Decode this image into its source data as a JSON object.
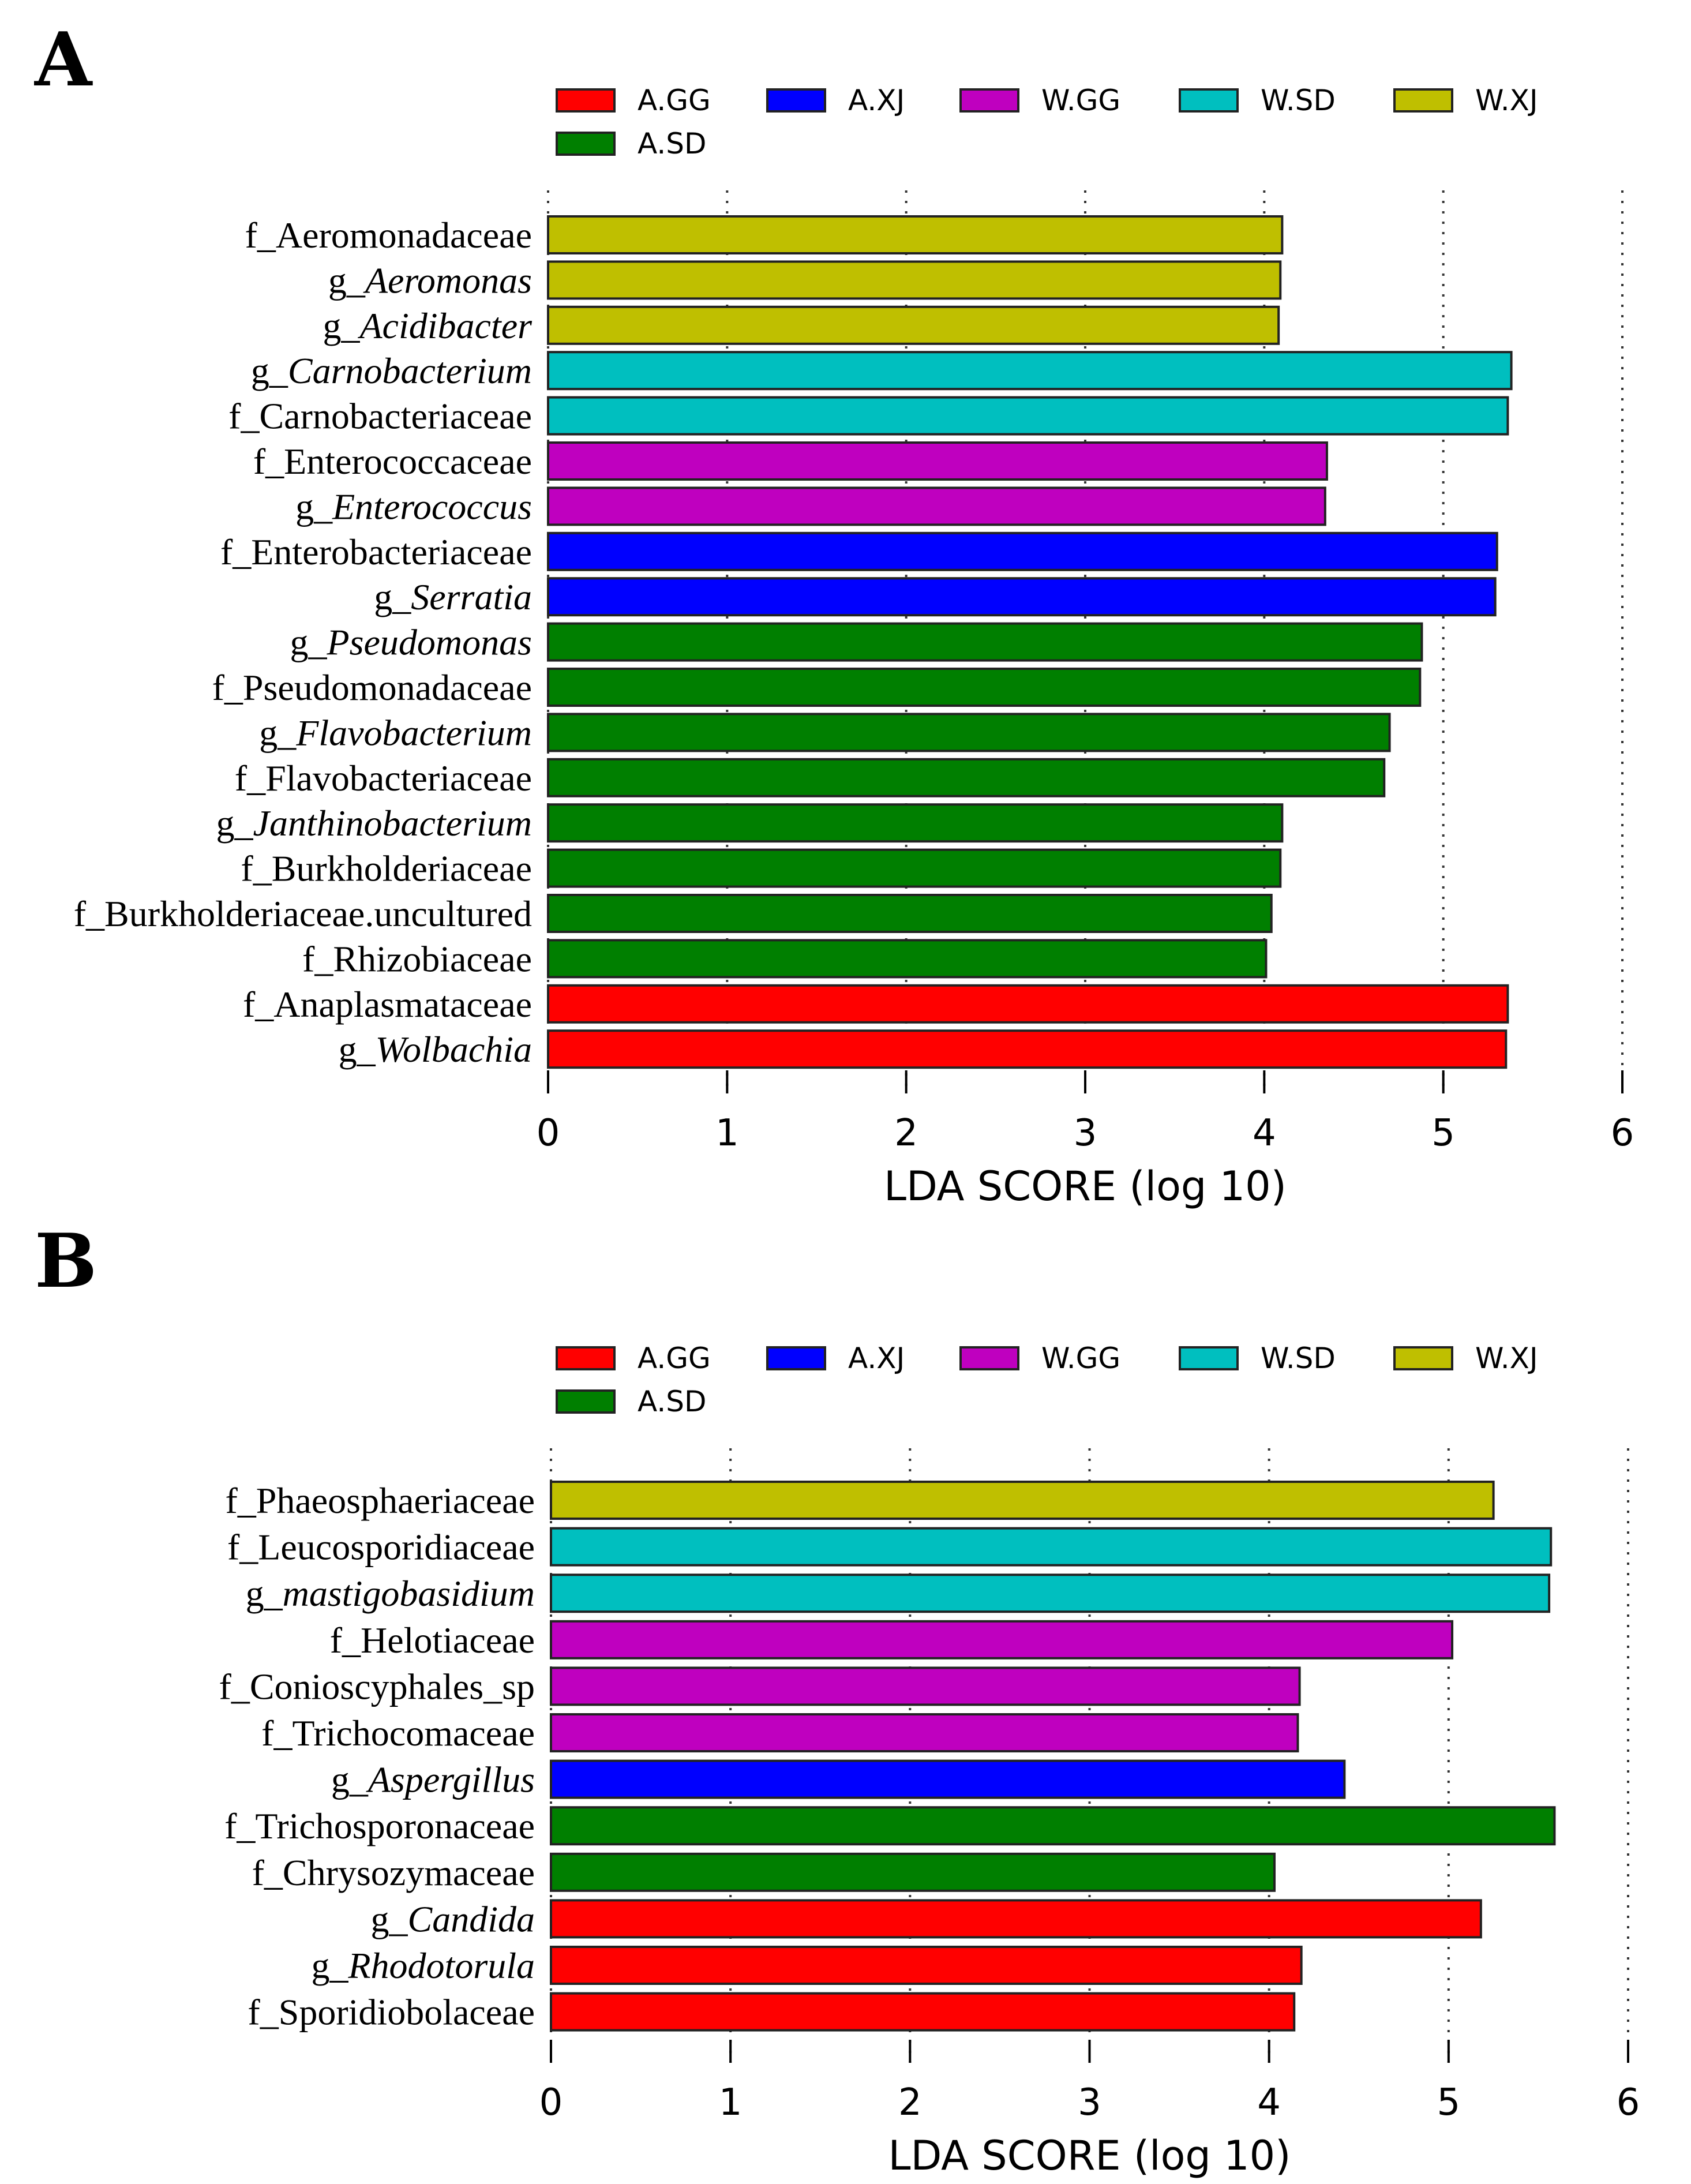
{
  "chart_data": [
    {
      "type": "bar",
      "orientation": "horizontal",
      "panel": "A",
      "xlabel": "LDA SCORE (log 10)",
      "xlim": [
        0,
        6
      ],
      "xticks": [
        "0",
        "1",
        "2",
        "3",
        "4",
        "5",
        "6"
      ],
      "grid": true,
      "legend_position": "top",
      "legend": [
        {
          "name": "A.GG",
          "color": "#ff0000"
        },
        {
          "name": "A.XJ",
          "color": "#0000ff"
        },
        {
          "name": "W.GG",
          "color": "#bf00bf"
        },
        {
          "name": "W.SD",
          "color": "#00bfbf"
        },
        {
          "name": "W.XJ",
          "color": "#bfbf00"
        },
        {
          "name": "A.SD",
          "color": "#007f00"
        }
      ],
      "bars": [
        {
          "prefix": "f_",
          "name": "Aeromonadaceae",
          "italic": false,
          "value": 4.1,
          "group": "W.XJ"
        },
        {
          "prefix": "g_",
          "name": "Aeromonas",
          "italic": true,
          "value": 4.09,
          "group": "W.XJ"
        },
        {
          "prefix": "g_",
          "name": "Acidibacter",
          "italic": true,
          "value": 4.08,
          "group": "W.XJ"
        },
        {
          "prefix": "g_",
          "name": "Carnobacterium",
          "italic": true,
          "value": 5.38,
          "group": "W.SD"
        },
        {
          "prefix": "f_",
          "name": "Carnobacteriaceae",
          "italic": false,
          "value": 5.36,
          "group": "W.SD"
        },
        {
          "prefix": "f_",
          "name": "Enterococcaceae",
          "italic": false,
          "value": 4.35,
          "group": "W.GG"
        },
        {
          "prefix": "g_",
          "name": "Enterococcus",
          "italic": true,
          "value": 4.34,
          "group": "W.GG"
        },
        {
          "prefix": "f_",
          "name": "Enterobacteriaceae",
          "italic": false,
          "value": 5.3,
          "group": "A.XJ"
        },
        {
          "prefix": "g_",
          "name": "Serratia",
          "italic": true,
          "value": 5.29,
          "group": "A.XJ"
        },
        {
          "prefix": "g_",
          "name": "Pseudomonas",
          "italic": true,
          "value": 4.88,
          "group": "A.SD"
        },
        {
          "prefix": "f_",
          "name": "Pseudomonadaceae",
          "italic": false,
          "value": 4.87,
          "group": "A.SD"
        },
        {
          "prefix": "g_",
          "name": "Flavobacterium",
          "italic": true,
          "value": 4.7,
          "group": "A.SD"
        },
        {
          "prefix": "f_",
          "name": "Flavobacteriaceae",
          "italic": false,
          "value": 4.67,
          "group": "A.SD"
        },
        {
          "prefix": "g_",
          "name": "Janthinobacterium",
          "italic": true,
          "value": 4.1,
          "group": "A.SD"
        },
        {
          "prefix": "f_",
          "name": "Burkholderiaceae",
          "italic": false,
          "value": 4.09,
          "group": "A.SD"
        },
        {
          "prefix": "f_",
          "name": "Burkholderiaceae.uncultured",
          "italic": false,
          "value": 4.04,
          "group": "A.SD"
        },
        {
          "prefix": "f_",
          "name": "Rhizobiaceae",
          "italic": false,
          "value": 4.01,
          "group": "A.SD"
        },
        {
          "prefix": "f_",
          "name": "Anaplasmataceae",
          "italic": false,
          "value": 5.36,
          "group": "A.GG"
        },
        {
          "prefix": "g_",
          "name": "Wolbachia",
          "italic": true,
          "value": 5.35,
          "group": "A.GG"
        }
      ]
    },
    {
      "type": "bar",
      "orientation": "horizontal",
      "panel": "B",
      "xlabel": "LDA SCORE (log 10)",
      "xlim": [
        0,
        6
      ],
      "xticks": [
        "0",
        "1",
        "2",
        "3",
        "4",
        "5",
        "6"
      ],
      "grid": true,
      "legend_position": "top",
      "legend": [
        {
          "name": "A.GG",
          "color": "#ff0000"
        },
        {
          "name": "A.XJ",
          "color": "#0000ff"
        },
        {
          "name": "W.GG",
          "color": "#bf00bf"
        },
        {
          "name": "W.SD",
          "color": "#00bfbf"
        },
        {
          "name": "W.XJ",
          "color": "#bfbf00"
        },
        {
          "name": "A.SD",
          "color": "#007f00"
        }
      ],
      "bars": [
        {
          "prefix": "f_",
          "name": "Phaeosphaeriaceae",
          "italic": false,
          "value": 5.25,
          "group": "W.XJ"
        },
        {
          "prefix": "f_",
          "name": "Leucosporidiaceae",
          "italic": false,
          "value": 5.57,
          "group": "W.SD"
        },
        {
          "prefix": "g_",
          "name": "mastigobasidium",
          "italic": true,
          "value": 5.56,
          "group": "W.SD"
        },
        {
          "prefix": "f_",
          "name": "Helotiaceae",
          "italic": false,
          "value": 5.02,
          "group": "W.GG"
        },
        {
          "prefix": "f_",
          "name": "Conioscyphales_sp",
          "italic": false,
          "value": 4.17,
          "group": "W.GG"
        },
        {
          "prefix": "f_",
          "name": "Trichocomaceae",
          "italic": false,
          "value": 4.16,
          "group": "W.GG"
        },
        {
          "prefix": "g_",
          "name": "Aspergillus",
          "italic": true,
          "value": 4.42,
          "group": "A.XJ"
        },
        {
          "prefix": "f_",
          "name": "Trichosporonaceae",
          "italic": false,
          "value": 5.59,
          "group": "A.SD"
        },
        {
          "prefix": "f_",
          "name": "Chrysozymaceae",
          "italic": false,
          "value": 4.03,
          "group": "A.SD"
        },
        {
          "prefix": "g_",
          "name": "Candida",
          "italic": true,
          "value": 5.18,
          "group": "A.GG"
        },
        {
          "prefix": "g_",
          "name": "Rhodotorula",
          "italic": true,
          "value": 4.18,
          "group": "A.GG"
        },
        {
          "prefix": "f_",
          "name": "Sporidiobolaceae",
          "italic": false,
          "value": 4.14,
          "group": "A.GG"
        }
      ]
    }
  ]
}
